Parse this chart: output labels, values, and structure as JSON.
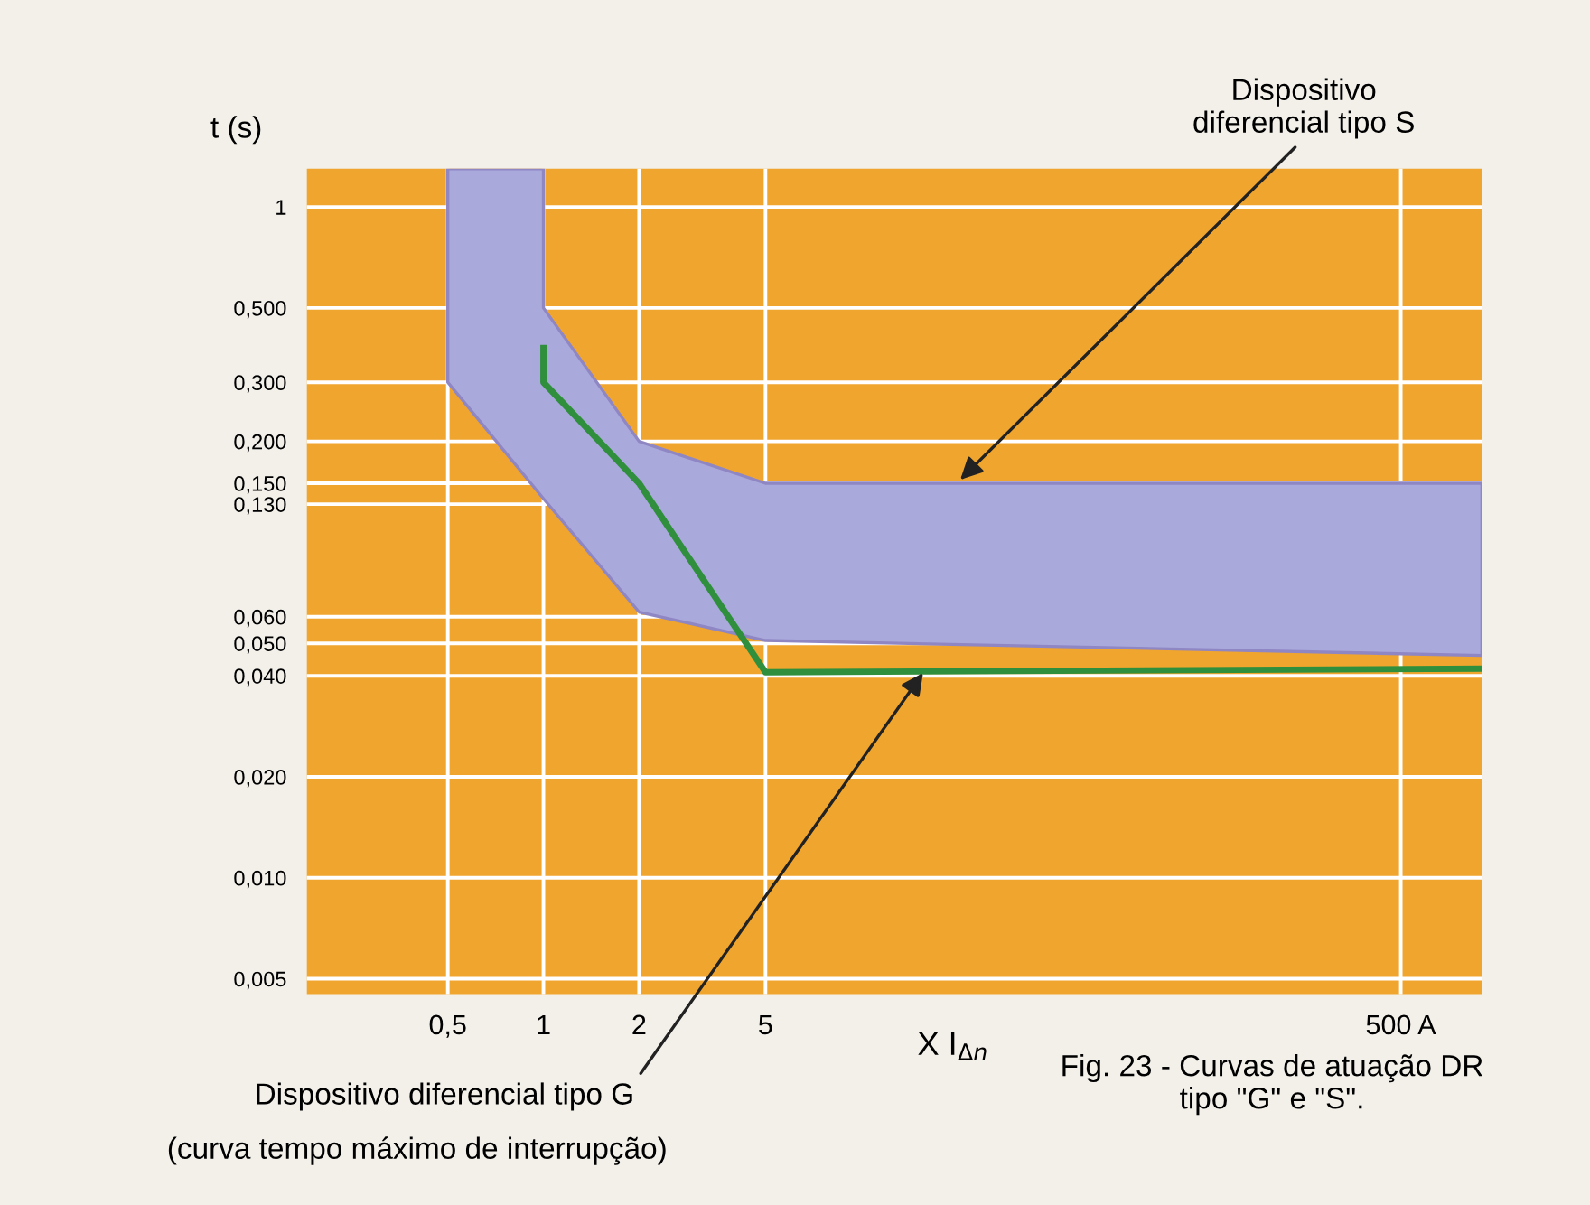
{
  "chart_data": {
    "type": "area",
    "ylabel": "t (s)",
    "xlabel": "X I$_{Δn}$",
    "log": "xy",
    "xlim": [
      0.18,
      900
    ],
    "xticks": [
      {
        "value": 0.5,
        "label": "0,5"
      },
      1,
      2,
      5,
      {
        "value": 500,
        "label": "500 A"
      }
    ],
    "ylim": [
      0.0045,
      1.3
    ],
    "yticks": [
      {
        "value": 0.005,
        "label": "0,005"
      },
      {
        "value": 0.01,
        "label": "0,010"
      },
      {
        "value": 0.02,
        "label": "0,020"
      },
      {
        "value": 0.04,
        "label": "0,040"
      },
      {
        "value": 0.05,
        "label": "0,050"
      },
      {
        "value": 0.06,
        "label": "0,060"
      },
      {
        "value": 0.13,
        "label": "0,130"
      },
      {
        "value": 0.15,
        "label": "0,150"
      },
      {
        "value": 0.2,
        "label": "0,200"
      },
      {
        "value": 0.3,
        "label": "0,300"
      },
      {
        "value": 0.5,
        "label": "0,500"
      },
      1
    ],
    "grid": true,
    "legend": false,
    "series": [
      {
        "color": "#a9a9dc",
        "x": [
          0.5,
          1,
          1,
          2,
          5,
          900
        ],
        "values": [
          null,
          null,
          null,
          null,
          null,
          null
        ],
        "upper": [
          1.3,
          1.3,
          0.5,
          0.2,
          0.15,
          0.15
        ],
        "lower": [
          0.3,
          0.135,
          0.135,
          0.062,
          0.051,
          0.046
        ]
      },
      {
        "type": "line",
        "color": "#2f8f3c",
        "x": [
          1,
          1,
          2,
          5,
          900
        ],
        "values": [
          0.38,
          0.3,
          0.15,
          0.041,
          0.042
        ]
      }
    ],
    "annotations": [
      {
        "text": "Dispositivo\ndiferencial tipo S",
        "x": 20,
        "y": 0.15
      },
      {
        "text": "Dispositivo diferencial tipo G",
        "x": 16,
        "y": 0.042
      },
      "(curva tempo máximo de interrupção)",
      "Fig. 23 - Curvas de atuação DR\ntipo \"G\" e \"S\"."
    ]
  }
}
